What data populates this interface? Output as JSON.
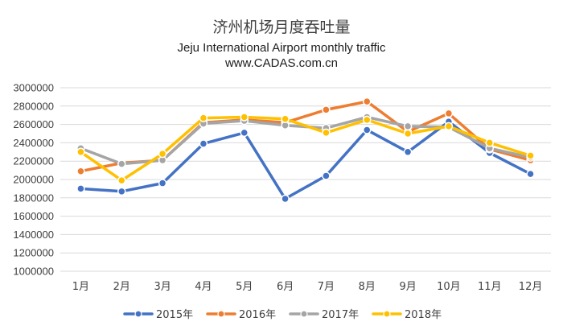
{
  "chart_data": {
    "type": "line",
    "title": "济州机场月度吞吐量",
    "subtitle": "Jeju International Airport monthly traffic",
    "source": "www.CADAS.com.cn",
    "categories": [
      "1月",
      "2月",
      "3月",
      "4月",
      "5月",
      "6月",
      "7月",
      "8月",
      "9月",
      "10月",
      "11月",
      "12月"
    ],
    "ylim": [
      1000000,
      3000000
    ],
    "yticks": [
      1000000,
      1200000,
      1400000,
      1600000,
      1800000,
      2000000,
      2200000,
      2400000,
      2600000,
      2800000,
      3000000
    ],
    "ytick_labels": [
      "1000000",
      "1200000",
      "1400000",
      "1600000",
      "1800000",
      "2000000",
      "2200000",
      "2400000",
      "2600000",
      "2800000",
      "3000000"
    ],
    "grid": true,
    "legend_position": "bottom",
    "series": [
      {
        "name": "2015年",
        "color": "#4472c4",
        "values": [
          1900000,
          1870000,
          1960000,
          2390000,
          2510000,
          1790000,
          2040000,
          2540000,
          2300000,
          2630000,
          2290000,
          2060000
        ]
      },
      {
        "name": "2016年",
        "color": "#ed7d31",
        "values": [
          2090000,
          2180000,
          2210000,
          2620000,
          2650000,
          2620000,
          2760000,
          2850000,
          2520000,
          2720000,
          2330000,
          2210000
        ]
      },
      {
        "name": "2017年",
        "color": "#a5a5a5",
        "values": [
          2340000,
          2170000,
          2210000,
          2610000,
          2640000,
          2590000,
          2560000,
          2680000,
          2580000,
          2570000,
          2340000,
          2240000
        ]
      },
      {
        "name": "2018年",
        "color": "#ffc000",
        "values": [
          2300000,
          1990000,
          2280000,
          2670000,
          2680000,
          2660000,
          2510000,
          2650000,
          2500000,
          2580000,
          2400000,
          2260000
        ]
      }
    ]
  }
}
